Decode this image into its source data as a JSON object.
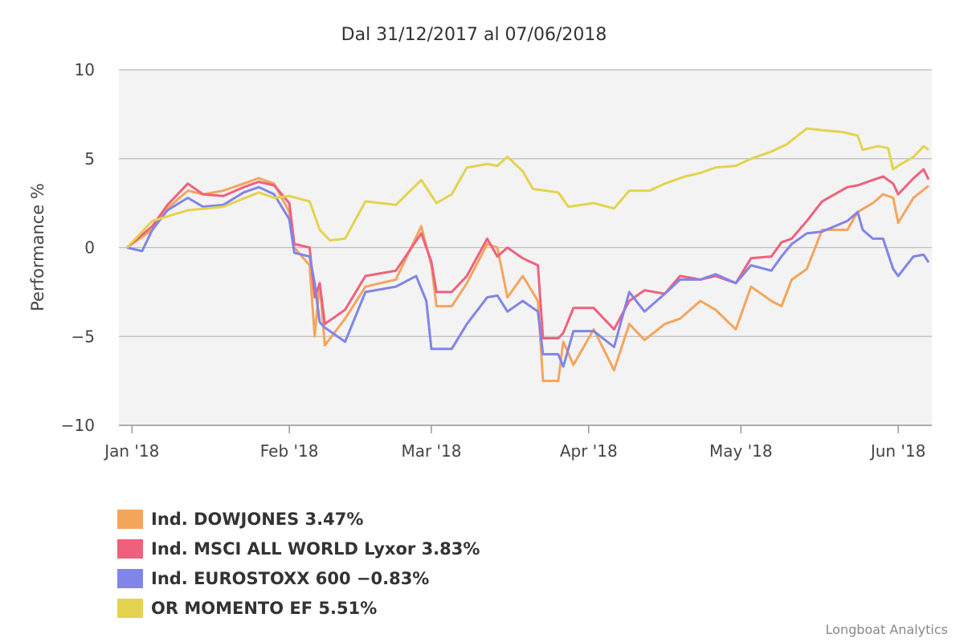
{
  "chart_data": {
    "type": "line",
    "title": "Dal 31/12/2017 al 07/06/2018",
    "ylabel": "Performance %",
    "xlabel": "",
    "ylim": [
      -10,
      10
    ],
    "yticks": [
      10,
      5,
      0,
      -5,
      -10
    ],
    "ytick_labels": [
      "10",
      "5",
      "0",
      "−5",
      "−10"
    ],
    "xlim": [
      "2017-12-31",
      "2018-06-07"
    ],
    "xticks": [
      {
        "date": "2018-01-01",
        "label": "Jan '18"
      },
      {
        "date": "2018-02-01",
        "label": "Feb '18"
      },
      {
        "date": "2018-03-01",
        "label": "Mar '18"
      },
      {
        "date": "2018-04-01",
        "label": "Apr '18"
      },
      {
        "date": "2018-05-01",
        "label": "May '18"
      },
      {
        "date": "2018-06-01",
        "label": "Jun '18"
      }
    ],
    "grid": true,
    "legend_position": "bottom-left",
    "series": [
      {
        "name": "Ind. DOWJONES 3.47%",
        "color": "#f4a55c",
        "points": [
          [
            "2017-12-31",
            0.0
          ],
          [
            "2018-01-05",
            1.0
          ],
          [
            "2018-01-08",
            2.2
          ],
          [
            "2018-01-12",
            3.2
          ],
          [
            "2018-01-15",
            3.0
          ],
          [
            "2018-01-19",
            3.2
          ],
          [
            "2018-01-23",
            3.6
          ],
          [
            "2018-01-26",
            3.9
          ],
          [
            "2018-01-29",
            3.6
          ],
          [
            "2018-02-01",
            2.0
          ],
          [
            "2018-02-02",
            0.0
          ],
          [
            "2018-02-05",
            -1.0
          ],
          [
            "2018-02-06",
            -5.0
          ],
          [
            "2018-02-07",
            -2.0
          ],
          [
            "2018-02-08",
            -5.5
          ],
          [
            "2018-02-12",
            -4.0
          ],
          [
            "2018-02-16",
            -2.2
          ],
          [
            "2018-02-22",
            -1.8
          ],
          [
            "2018-02-27",
            1.2
          ],
          [
            "2018-03-01",
            -1.0
          ],
          [
            "2018-03-02",
            -3.3
          ],
          [
            "2018-03-05",
            -3.3
          ],
          [
            "2018-03-08",
            -2.0
          ],
          [
            "2018-03-12",
            0.2
          ],
          [
            "2018-03-14",
            0.0
          ],
          [
            "2018-03-16",
            -2.8
          ],
          [
            "2018-03-19",
            -1.6
          ],
          [
            "2018-03-22",
            -3.0
          ],
          [
            "2018-03-23",
            -7.5
          ],
          [
            "2018-03-26",
            -7.5
          ],
          [
            "2018-03-27",
            -5.3
          ],
          [
            "2018-03-29",
            -6.6
          ],
          [
            "2018-04-02",
            -4.6
          ],
          [
            "2018-04-06",
            -6.9
          ],
          [
            "2018-04-09",
            -4.3
          ],
          [
            "2018-04-12",
            -5.2
          ],
          [
            "2018-04-16",
            -4.3
          ],
          [
            "2018-04-19",
            -4.0
          ],
          [
            "2018-04-23",
            -3.0
          ],
          [
            "2018-04-26",
            -3.5
          ],
          [
            "2018-04-30",
            -4.6
          ],
          [
            "2018-05-03",
            -2.2
          ],
          [
            "2018-05-07",
            -3.0
          ],
          [
            "2018-05-09",
            -3.3
          ],
          [
            "2018-05-11",
            -1.8
          ],
          [
            "2018-05-14",
            -1.2
          ],
          [
            "2018-05-17",
            1.0
          ],
          [
            "2018-05-22",
            1.0
          ],
          [
            "2018-05-24",
            2.0
          ],
          [
            "2018-05-27",
            2.5
          ],
          [
            "2018-05-29",
            3.0
          ],
          [
            "2018-05-31",
            2.8
          ],
          [
            "2018-06-01",
            1.4
          ],
          [
            "2018-06-04",
            2.8
          ],
          [
            "2018-06-07",
            3.47
          ]
        ]
      },
      {
        "name": "Ind. MSCI ALL WORLD Lyxor 3.83%",
        "color": "#f0607d",
        "points": [
          [
            "2017-12-31",
            0.0
          ],
          [
            "2018-01-05",
            1.2
          ],
          [
            "2018-01-08",
            2.4
          ],
          [
            "2018-01-12",
            3.6
          ],
          [
            "2018-01-15",
            3.0
          ],
          [
            "2018-01-19",
            2.9
          ],
          [
            "2018-01-23",
            3.4
          ],
          [
            "2018-01-26",
            3.7
          ],
          [
            "2018-01-29",
            3.5
          ],
          [
            "2018-02-01",
            2.5
          ],
          [
            "2018-02-02",
            0.2
          ],
          [
            "2018-02-05",
            0.0
          ],
          [
            "2018-02-06",
            -2.8
          ],
          [
            "2018-02-07",
            -2.0
          ],
          [
            "2018-02-08",
            -4.3
          ],
          [
            "2018-02-12",
            -3.5
          ],
          [
            "2018-02-16",
            -1.6
          ],
          [
            "2018-02-22",
            -1.3
          ],
          [
            "2018-02-27",
            0.8
          ],
          [
            "2018-03-01",
            -0.8
          ],
          [
            "2018-03-02",
            -2.5
          ],
          [
            "2018-03-05",
            -2.5
          ],
          [
            "2018-03-08",
            -1.6
          ],
          [
            "2018-03-12",
            0.5
          ],
          [
            "2018-03-14",
            -0.5
          ],
          [
            "2018-03-16",
            0.0
          ],
          [
            "2018-03-19",
            -0.6
          ],
          [
            "2018-03-22",
            -1.0
          ],
          [
            "2018-03-23",
            -5.1
          ],
          [
            "2018-03-26",
            -5.1
          ],
          [
            "2018-03-27",
            -4.8
          ],
          [
            "2018-03-29",
            -3.4
          ],
          [
            "2018-04-02",
            -3.4
          ],
          [
            "2018-04-06",
            -4.6
          ],
          [
            "2018-04-09",
            -3.0
          ],
          [
            "2018-04-12",
            -2.4
          ],
          [
            "2018-04-16",
            -2.6
          ],
          [
            "2018-04-19",
            -1.6
          ],
          [
            "2018-04-23",
            -1.8
          ],
          [
            "2018-04-26",
            -1.6
          ],
          [
            "2018-04-30",
            -2.0
          ],
          [
            "2018-05-03",
            -0.6
          ],
          [
            "2018-05-07",
            -0.5
          ],
          [
            "2018-05-09",
            0.3
          ],
          [
            "2018-05-11",
            0.5
          ],
          [
            "2018-05-14",
            1.5
          ],
          [
            "2018-05-17",
            2.6
          ],
          [
            "2018-05-22",
            3.4
          ],
          [
            "2018-05-24",
            3.5
          ],
          [
            "2018-05-27",
            3.8
          ],
          [
            "2018-05-29",
            4.0
          ],
          [
            "2018-05-31",
            3.6
          ],
          [
            "2018-06-01",
            3.0
          ],
          [
            "2018-06-04",
            3.9
          ],
          [
            "2018-06-06",
            4.4
          ],
          [
            "2018-06-07",
            3.83
          ]
        ]
      },
      {
        "name": "Ind. EUROSTOXX 600 −0.83%",
        "color": "#8184e8",
        "points": [
          [
            "2017-12-31",
            0.0
          ],
          [
            "2018-01-03",
            -0.2
          ],
          [
            "2018-01-05",
            1.0
          ],
          [
            "2018-01-08",
            2.1
          ],
          [
            "2018-01-12",
            2.8
          ],
          [
            "2018-01-15",
            2.3
          ],
          [
            "2018-01-19",
            2.4
          ],
          [
            "2018-01-23",
            3.1
          ],
          [
            "2018-01-26",
            3.4
          ],
          [
            "2018-01-29",
            3.0
          ],
          [
            "2018-02-01",
            1.6
          ],
          [
            "2018-02-02",
            -0.3
          ],
          [
            "2018-02-05",
            -0.5
          ],
          [
            "2018-02-06",
            -2.0
          ],
          [
            "2018-02-07",
            -4.2
          ],
          [
            "2018-02-08",
            -4.5
          ],
          [
            "2018-02-12",
            -5.3
          ],
          [
            "2018-02-16",
            -2.5
          ],
          [
            "2018-02-22",
            -2.2
          ],
          [
            "2018-02-26",
            -1.6
          ],
          [
            "2018-02-28",
            -3.0
          ],
          [
            "2018-03-01",
            -5.7
          ],
          [
            "2018-03-05",
            -5.7
          ],
          [
            "2018-03-08",
            -4.3
          ],
          [
            "2018-03-12",
            -2.8
          ],
          [
            "2018-03-14",
            -2.7
          ],
          [
            "2018-03-16",
            -3.6
          ],
          [
            "2018-03-19",
            -3.0
          ],
          [
            "2018-03-22",
            -3.6
          ],
          [
            "2018-03-23",
            -6.0
          ],
          [
            "2018-03-26",
            -6.0
          ],
          [
            "2018-03-27",
            -6.7
          ],
          [
            "2018-03-29",
            -4.7
          ],
          [
            "2018-04-02",
            -4.7
          ],
          [
            "2018-04-06",
            -5.6
          ],
          [
            "2018-04-09",
            -2.5
          ],
          [
            "2018-04-12",
            -3.6
          ],
          [
            "2018-04-16",
            -2.6
          ],
          [
            "2018-04-19",
            -1.8
          ],
          [
            "2018-04-23",
            -1.8
          ],
          [
            "2018-04-26",
            -1.5
          ],
          [
            "2018-04-30",
            -2.0
          ],
          [
            "2018-05-03",
            -1.0
          ],
          [
            "2018-05-07",
            -1.3
          ],
          [
            "2018-05-09",
            -0.5
          ],
          [
            "2018-05-11",
            0.2
          ],
          [
            "2018-05-14",
            0.8
          ],
          [
            "2018-05-17",
            0.9
          ],
          [
            "2018-05-22",
            1.5
          ],
          [
            "2018-05-24",
            2.0
          ],
          [
            "2018-05-25",
            1.0
          ],
          [
            "2018-05-27",
            0.5
          ],
          [
            "2018-05-29",
            0.5
          ],
          [
            "2018-05-31",
            -1.2
          ],
          [
            "2018-06-01",
            -1.6
          ],
          [
            "2018-06-04",
            -0.5
          ],
          [
            "2018-06-06",
            -0.4
          ],
          [
            "2018-06-07",
            -0.83
          ]
        ]
      },
      {
        "name": "OR MOMENTO EF 5.51%",
        "color": "#e3d34e",
        "points": [
          [
            "2017-12-31",
            0.0
          ],
          [
            "2018-01-05",
            1.5
          ],
          [
            "2018-01-12",
            2.1
          ],
          [
            "2018-01-19",
            2.3
          ],
          [
            "2018-01-26",
            3.1
          ],
          [
            "2018-01-29",
            2.8
          ],
          [
            "2018-02-01",
            2.9
          ],
          [
            "2018-02-05",
            2.6
          ],
          [
            "2018-02-07",
            1.0
          ],
          [
            "2018-02-09",
            0.4
          ],
          [
            "2018-02-12",
            0.5
          ],
          [
            "2018-02-16",
            2.6
          ],
          [
            "2018-02-22",
            2.4
          ],
          [
            "2018-02-27",
            3.8
          ],
          [
            "2018-03-02",
            2.5
          ],
          [
            "2018-03-05",
            3.0
          ],
          [
            "2018-03-08",
            4.5
          ],
          [
            "2018-03-12",
            4.7
          ],
          [
            "2018-03-14",
            4.6
          ],
          [
            "2018-03-16",
            5.1
          ],
          [
            "2018-03-19",
            4.3
          ],
          [
            "2018-03-21",
            3.3
          ],
          [
            "2018-03-26",
            3.1
          ],
          [
            "2018-03-28",
            2.3
          ],
          [
            "2018-04-02",
            2.5
          ],
          [
            "2018-04-06",
            2.2
          ],
          [
            "2018-04-09",
            3.2
          ],
          [
            "2018-04-13",
            3.2
          ],
          [
            "2018-04-16",
            3.6
          ],
          [
            "2018-04-20",
            4.0
          ],
          [
            "2018-04-23",
            4.2
          ],
          [
            "2018-04-26",
            4.5
          ],
          [
            "2018-04-30",
            4.6
          ],
          [
            "2018-05-03",
            5.0
          ],
          [
            "2018-05-07",
            5.4
          ],
          [
            "2018-05-10",
            5.8
          ],
          [
            "2018-05-14",
            6.7
          ],
          [
            "2018-05-17",
            6.6
          ],
          [
            "2018-05-21",
            6.5
          ],
          [
            "2018-05-24",
            6.3
          ],
          [
            "2018-05-25",
            5.5
          ],
          [
            "2018-05-28",
            5.7
          ],
          [
            "2018-05-30",
            5.6
          ],
          [
            "2018-05-31",
            4.4
          ],
          [
            "2018-06-01",
            4.6
          ],
          [
            "2018-06-04",
            5.1
          ],
          [
            "2018-06-06",
            5.7
          ],
          [
            "2018-06-07",
            5.51
          ]
        ]
      }
    ]
  },
  "legend": {
    "items": [
      {
        "label": "Ind. DOWJONES 3.47%",
        "color": "#f4a55c"
      },
      {
        "label": "Ind. MSCI ALL WORLD Lyxor 3.83%",
        "color": "#f0607d"
      },
      {
        "label": "Ind. EUROSTOXX 600 −0.83%",
        "color": "#8184e8"
      },
      {
        "label": "OR MOMENTO EF 5.51%",
        "color": "#e3d34e"
      }
    ]
  },
  "credit": "Longboat Analytics"
}
